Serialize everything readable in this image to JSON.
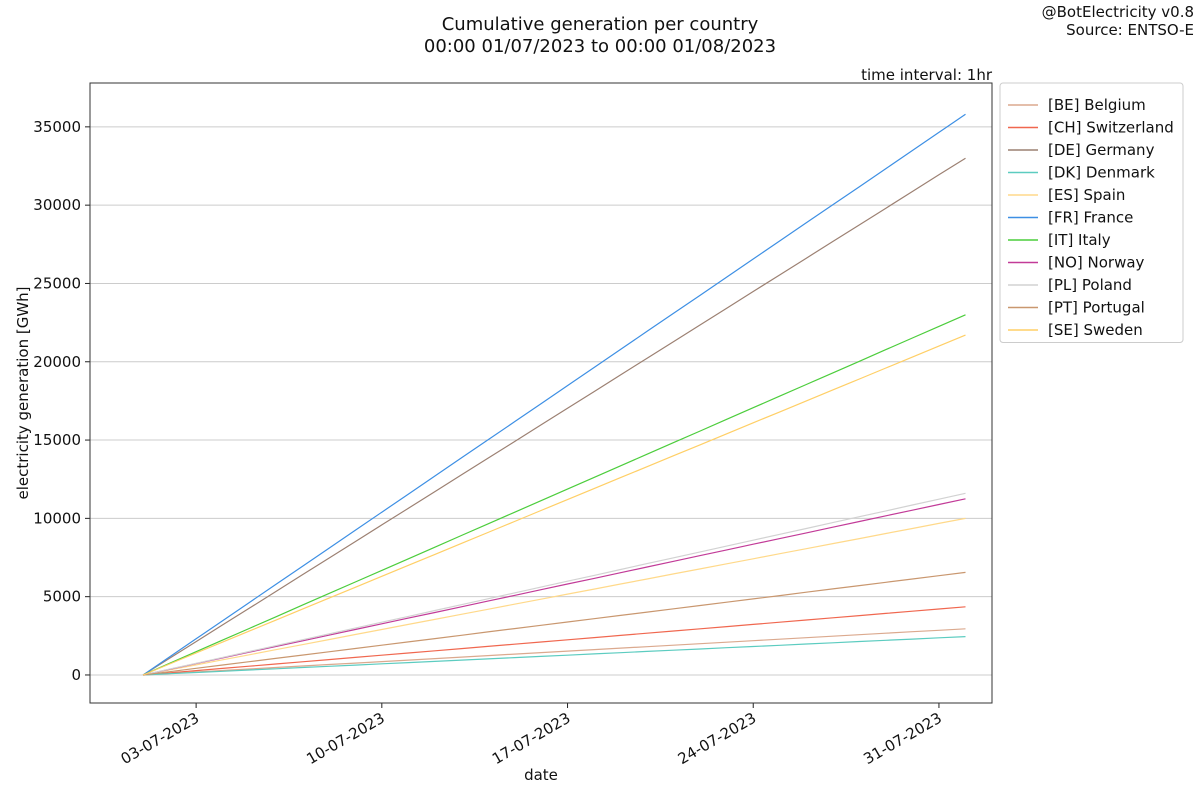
{
  "chart_data": {
    "type": "line",
    "title": "Cumulative generation per country",
    "subtitle": "00:00 01/07/2023 to 00:00 01/08/2023",
    "credit": "@BotElectricity v0.8",
    "source": "Source: ENTSO-E",
    "annotation": "time interval: 1hr",
    "xlabel": "date",
    "ylabel": "electricity generation [GWh]",
    "x": [
      "01-07-2023",
      "02-07-2023",
      "03-07-2023",
      "04-07-2023",
      "05-07-2023",
      "06-07-2023",
      "07-07-2023",
      "08-07-2023",
      "09-07-2023",
      "10-07-2023",
      "11-07-2023",
      "12-07-2023",
      "13-07-2023",
      "14-07-2023",
      "15-07-2023",
      "16-07-2023",
      "17-07-2023",
      "18-07-2023",
      "19-07-2023",
      "20-07-2023",
      "21-07-2023",
      "22-07-2023",
      "23-07-2023",
      "24-07-2023",
      "25-07-2023",
      "26-07-2023",
      "27-07-2023",
      "28-07-2023",
      "29-07-2023",
      "30-07-2023",
      "31-07-2023",
      "01-08-2023"
    ],
    "xlim": [
      "29-06-2023",
      "02-08-2023"
    ],
    "xticks": [
      "03-07-2023",
      "10-07-2023",
      "17-07-2023",
      "24-07-2023",
      "31-07-2023"
    ],
    "ylim": [
      -1790,
      37800
    ],
    "yticks": [
      0,
      5000,
      10000,
      15000,
      20000,
      25000,
      30000,
      35000
    ],
    "grid": true,
    "legend": "outside-right",
    "series": [
      {
        "name": "[BE] Belgium",
        "color": "#dba98e",
        "values": [
          0,
          95,
          190,
          285,
          381,
          476,
          571,
          666,
          761,
          856,
          952,
          1047,
          1142,
          1237,
          1332,
          1427,
          1523,
          1618,
          1713,
          1808,
          1903,
          1998,
          2094,
          2189,
          2284,
          2379,
          2474,
          2569,
          2665,
          2760,
          2855,
          2950
        ]
      },
      {
        "name": "[CH] Switzerland",
        "color": "#f0674f",
        "values": [
          0,
          140,
          281,
          421,
          561,
          702,
          842,
          982,
          1123,
          1263,
          1403,
          1544,
          1684,
          1824,
          1965,
          2105,
          2245,
          2385,
          2526,
          2666,
          2806,
          2947,
          3087,
          3227,
          3368,
          3508,
          3648,
          3789,
          3929,
          4069,
          4210,
          4350
        ]
      },
      {
        "name": "[DE] Germany",
        "color": "#9c8072",
        "values": [
          0,
          1065,
          2129,
          3194,
          4258,
          5323,
          6387,
          7452,
          8516,
          9581,
          10645,
          11710,
          12774,
          13839,
          14903,
          15968,
          17032,
          18097,
          19161,
          20226,
          21290,
          22355,
          23419,
          24484,
          25548,
          26613,
          27677,
          28742,
          29806,
          30871,
          31935,
          33000
        ]
      },
      {
        "name": "[DK] Denmark",
        "color": "#5cccc0",
        "values": [
          0,
          79,
          158,
          237,
          316,
          395,
          474,
          553,
          632,
          711,
          790,
          869,
          948,
          1027,
          1106,
          1185,
          1265,
          1344,
          1423,
          1502,
          1581,
          1660,
          1739,
          1818,
          1897,
          1976,
          2055,
          2134,
          2213,
          2292,
          2371,
          2450
        ]
      },
      {
        "name": "[ES] Spain",
        "color": "#ffd98a",
        "values": [
          0,
          323,
          645,
          968,
          1290,
          1613,
          1935,
          2258,
          2581,
          2903,
          3226,
          3548,
          3871,
          4194,
          4516,
          4839,
          5161,
          5484,
          5806,
          6129,
          6452,
          6774,
          7097,
          7419,
          7742,
          8065,
          8387,
          8710,
          9032,
          9355,
          9677,
          10000
        ]
      },
      {
        "name": "[FR] France",
        "color": "#3d8fe4",
        "values": [
          0,
          1155,
          2310,
          3465,
          4619,
          5774,
          6929,
          8084,
          9239,
          10394,
          11548,
          12703,
          13858,
          15013,
          16168,
          17323,
          18477,
          19632,
          20787,
          21942,
          23097,
          24252,
          25406,
          26561,
          27716,
          28871,
          30026,
          31181,
          32335,
          33490,
          34645,
          35800
        ]
      },
      {
        "name": "[IT] Italy",
        "color": "#4ccd3c",
        "values": [
          0,
          742,
          1484,
          2226,
          2968,
          3710,
          4452,
          5194,
          5935,
          6677,
          7419,
          8161,
          8903,
          9645,
          10387,
          11129,
          11871,
          12613,
          13355,
          14097,
          14839,
          15581,
          16323,
          17065,
          17806,
          18548,
          19290,
          20032,
          20774,
          21516,
          22258,
          23000
        ]
      },
      {
        "name": "[NO] Norway",
        "color": "#c23b98",
        "values": [
          0,
          363,
          726,
          1089,
          1452,
          1815,
          2177,
          2540,
          2903,
          3266,
          3629,
          3992,
          4355,
          4718,
          5081,
          5444,
          5806,
          6169,
          6532,
          6895,
          7258,
          7621,
          7984,
          8347,
          8710,
          9073,
          9435,
          9798,
          10161,
          10524,
          10887,
          11250
        ]
      },
      {
        "name": "[PL] Poland",
        "color": "#d2d2d2",
        "values": [
          0,
          374,
          748,
          1123,
          1497,
          1871,
          2245,
          2619,
          2994,
          3368,
          3742,
          4116,
          4490,
          4865,
          5239,
          5613,
          5987,
          6361,
          6735,
          7110,
          7484,
          7858,
          8232,
          8606,
          8981,
          9355,
          9729,
          10103,
          10477,
          10852,
          11226,
          11600
        ]
      },
      {
        "name": "[PT] Portugal",
        "color": "#c9976f",
        "values": [
          0,
          211,
          423,
          634,
          845,
          1056,
          1268,
          1479,
          1690,
          1902,
          2113,
          2324,
          2535,
          2747,
          2958,
          3169,
          3381,
          3592,
          3803,
          4015,
          4226,
          4437,
          4648,
          4860,
          5071,
          5282,
          5494,
          5705,
          5916,
          6127,
          6339,
          6550
        ]
      },
      {
        "name": "[SE] Sweden",
        "color": "#ffcf66",
        "values": [
          0,
          700,
          1400,
          2100,
          2800,
          3500,
          4200,
          4900,
          5600,
          6300,
          7000,
          7700,
          8400,
          9100,
          9800,
          10500,
          11200,
          11900,
          12600,
          13300,
          14000,
          14700,
          15400,
          16100,
          16800,
          17500,
          18200,
          18900,
          19600,
          20300,
          21000,
          21700
        ]
      }
    ]
  }
}
